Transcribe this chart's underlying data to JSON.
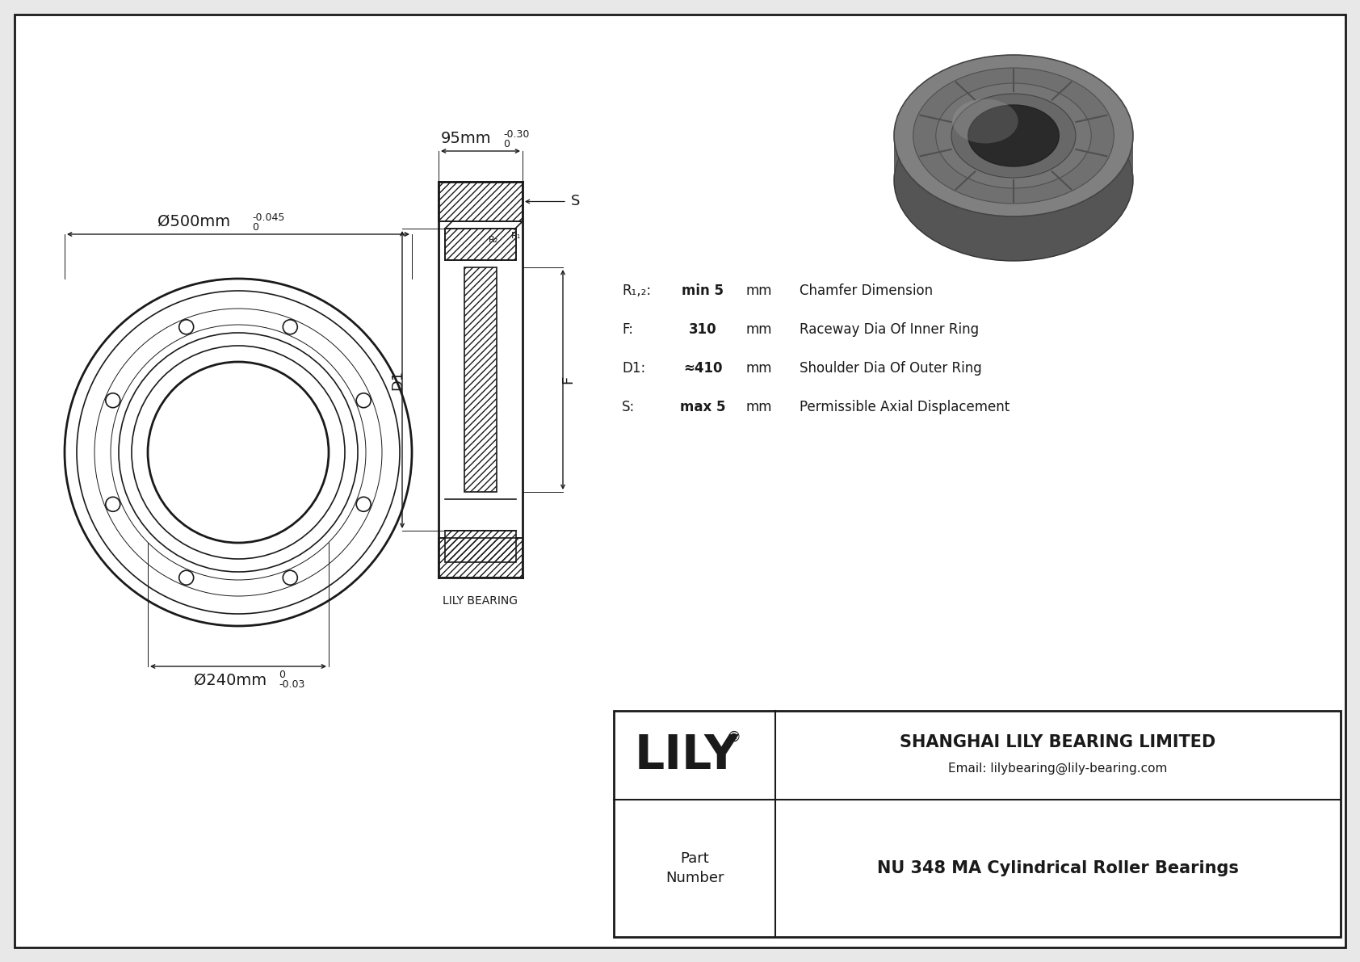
{
  "bg_color": "#e8e8e8",
  "drawing_bg": "#ffffff",
  "line_color": "#1a1a1a",
  "title_company": "SHANGHAI LILY BEARING LIMITED",
  "title_email": "Email: lilybearing@lily-bearing.com",
  "part_number": "NU 348 MA Cylindrical Roller Bearings",
  "logo_text": "LILY",
  "dim_d_outer": "Ø500mm",
  "dim_d_outer_tol_top": "0",
  "dim_d_outer_tol_bot": "-0.045",
  "dim_d_inner": "Ø240mm",
  "dim_d_inner_tol_top": "0",
  "dim_d_inner_tol_bot": "-0.03",
  "dim_width": "95mm",
  "dim_width_tol_top": "0",
  "dim_width_tol_bot": "-0.30",
  "dim_f_label": "F",
  "dim_d1_label": "D1",
  "dim_s_label": "S",
  "spec_r12_label": "R₁,₂:",
  "spec_r12_val": "min 5",
  "spec_r12_unit": "mm",
  "spec_r12_desc": "Chamfer Dimension",
  "spec_f_label": "F:",
  "spec_f_val": "310",
  "spec_f_unit": "mm",
  "spec_f_desc": "Raceway Dia Of Inner Ring",
  "spec_d1_label": "D1:",
  "spec_d1_val": "≈410",
  "spec_d1_unit": "mm",
  "spec_d1_desc": "Shoulder Dia Of Outer Ring",
  "spec_s_label": "S:",
  "spec_s_val": "max 5",
  "spec_s_unit": "mm",
  "spec_s_desc": "Permissible Axial Displacement",
  "lily_bearing_label": "LILY BEARING"
}
